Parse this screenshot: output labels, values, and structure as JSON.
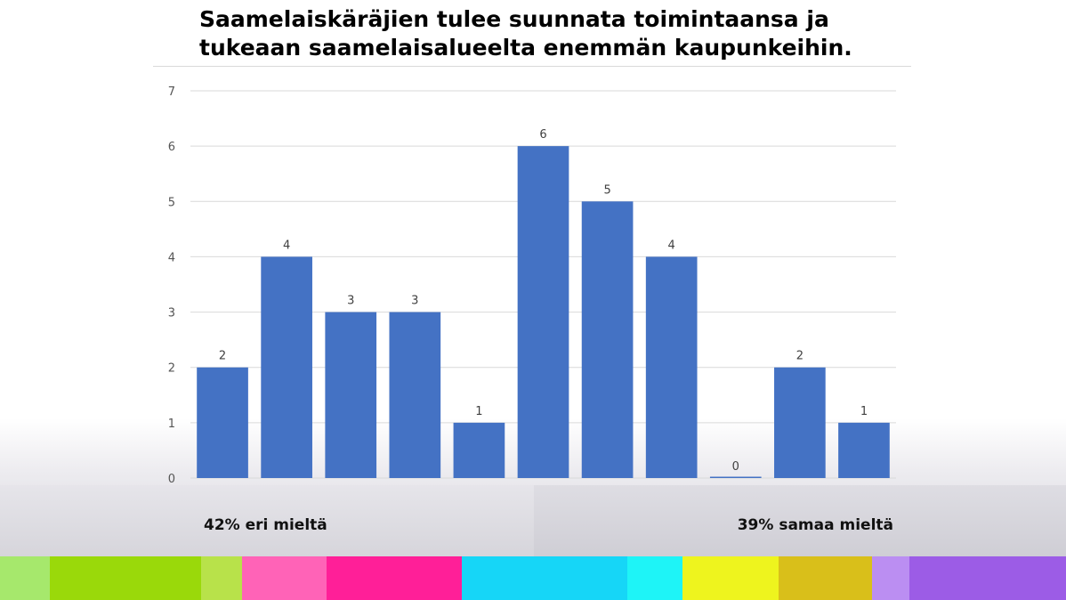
{
  "title": "Saamelaiskäräjien tulee suunnata toimintaansa ja tukeaan saamelaisalueelta enemmän kaupunkeihin.",
  "footer": {
    "left": "42% eri mieltä",
    "right": "39% samaa mieltä"
  },
  "colors": {
    "bar": "#4472c4",
    "gridline": "#d9d9d9"
  },
  "stripe_colors": [
    "#a6e86c",
    "#9ad90a",
    "#b8e24a",
    "#ff63b7",
    "#ff1f98",
    "#16d6f7",
    "#1ef4f7",
    "#eef41e",
    "#d9bf1a",
    "#bb8ef2",
    "#9c5ce6"
  ],
  "chart_data": {
    "type": "bar",
    "categories": [
      "",
      "",
      "",
      "",
      "",
      "",
      "",
      "",
      "",
      "",
      ""
    ],
    "values": [
      2,
      4,
      3,
      3,
      1,
      6,
      5,
      4,
      0,
      2,
      1
    ],
    "ylim": [
      0,
      7
    ],
    "yticks": [
      0,
      1,
      2,
      3,
      4,
      5,
      6,
      7
    ],
    "grid": true,
    "legend": "none",
    "xlabel": "",
    "ylabel": ""
  }
}
